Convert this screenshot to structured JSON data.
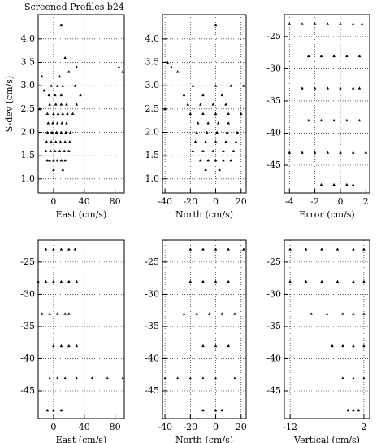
{
  "title": "Screened Profiles b24",
  "chart_data": [
    {
      "type": "scatter",
      "x_label": "East (cm/s)",
      "y_label": "S-dev (cm/s)",
      "grid": true,
      "color": "#000000",
      "xlim": [
        -20,
        92
      ],
      "ylim": [
        0.7,
        4.52
      ],
      "xticks": [
        0,
        40,
        80
      ],
      "yticks": [
        {
          "value": 1,
          "label": "1.0"
        },
        1.5,
        {
          "value": 2,
          "label": "2.0"
        },
        2.5,
        {
          "value": 3,
          "label": "3.0"
        },
        3.5,
        {
          "value": 4,
          "label": "4.0"
        }
      ],
      "x": [
        -8,
        -5,
        0,
        5,
        10,
        15,
        -10,
        -4,
        2,
        8,
        14,
        20,
        -9,
        -3,
        3,
        9,
        15,
        21,
        -8,
        -2,
        4,
        10,
        16,
        22,
        -7,
        -1,
        5,
        11,
        17,
        -8,
        0,
        6,
        12,
        18,
        25,
        -5,
        3,
        10,
        17,
        30,
        -6,
        2,
        10,
        35,
        -3,
        5,
        12,
        28,
        -15,
        8,
        20,
        15,
        30,
        85,
        90,
        10,
        -18,
        -12,
        0,
        12
      ],
      "y": [
        1.4,
        1.4,
        1.4,
        1.4,
        1.4,
        1.4,
        1.6,
        1.6,
        1.6,
        1.6,
        1.6,
        1.6,
        1.8,
        1.8,
        1.8,
        1.8,
        1.8,
        1.8,
        2.0,
        2.0,
        2.0,
        2.0,
        2.0,
        2.0,
        2.2,
        2.2,
        2.2,
        2.2,
        2.2,
        2.4,
        2.4,
        2.4,
        2.4,
        2.4,
        2.4,
        2.6,
        2.6,
        2.6,
        2.6,
        2.6,
        2.8,
        2.8,
        2.8,
        2.8,
        3.0,
        3.0,
        3.0,
        3.0,
        3.2,
        3.2,
        3.3,
        3.6,
        3.4,
        3.4,
        3.3,
        4.3,
        2.5,
        2.9,
        1.2,
        1.2
      ]
    },
    {
      "type": "scatter",
      "x_label": "North (cm/s)",
      "grid": true,
      "color": "#000000",
      "xlim": [
        -42,
        24
      ],
      "ylim": [
        0.7,
        4.52
      ],
      "xticks": [
        -40,
        -20,
        0,
        20
      ],
      "yticks": [
        {
          "value": 1,
          "label": "1.0"
        },
        1.5,
        {
          "value": 2,
          "label": "2.0"
        },
        2.5,
        {
          "value": 3,
          "label": "3.0"
        },
        3.5,
        {
          "value": 4,
          "label": "4.0"
        }
      ],
      "x": [
        -12,
        -6,
        0,
        6,
        12,
        -18,
        -10,
        -2,
        6,
        14,
        -16,
        -8,
        0,
        8,
        16,
        -15,
        -7,
        1,
        9,
        17,
        -14,
        -6,
        2,
        10,
        -20,
        -10,
        0,
        10,
        20,
        -22,
        -12,
        -2,
        8,
        -25,
        -10,
        5,
        -18,
        0,
        12,
        -30,
        -38,
        -35,
        0,
        22,
        -40,
        -8,
        3
      ],
      "y": [
        1.4,
        1.4,
        1.4,
        1.4,
        1.4,
        1.6,
        1.6,
        1.6,
        1.6,
        1.6,
        1.8,
        1.8,
        1.8,
        1.8,
        1.8,
        2.0,
        2.0,
        2.0,
        2.0,
        2.0,
        2.2,
        2.2,
        2.2,
        2.2,
        2.4,
        2.4,
        2.4,
        2.4,
        2.4,
        2.6,
        2.6,
        2.6,
        2.6,
        2.8,
        2.8,
        2.8,
        3.0,
        3.0,
        3.0,
        3.3,
        3.5,
        3.4,
        4.3,
        3.0,
        2.5,
        1.2,
        1.2
      ]
    },
    {
      "type": "scatter",
      "x_label": "Error (cm/s)",
      "grid": true,
      "color": "#000000",
      "xlim": [
        -4.4,
        2.3
      ],
      "ylim": [
        -49.3,
        -21.6
      ],
      "xticks": [
        -4,
        -2,
        0,
        2
      ],
      "yticks": [
        -25,
        -30,
        -35,
        -40,
        -45
      ],
      "x": [
        -4,
        -3,
        -2,
        -1,
        0,
        1,
        1.7,
        -2.5,
        -1.5,
        -0.5,
        0.5,
        1.5,
        -3,
        -2,
        -1,
        0,
        1,
        1.5,
        -2.5,
        -1.5,
        -0.5,
        0.5,
        1.5,
        -4,
        -3,
        -2,
        -1,
        0,
        1,
        2,
        -1.5,
        -0.5,
        0.5,
        1
      ],
      "y": [
        -23,
        -23,
        -23,
        -23,
        -23,
        -23,
        -23,
        -28,
        -28,
        -28,
        -28,
        -28,
        -33,
        -33,
        -33,
        -33,
        -33,
        -33,
        -38,
        -38,
        -38,
        -38,
        -38,
        -43,
        -43,
        -43,
        -43,
        -43,
        -43,
        -43,
        -48,
        -48,
        -48,
        -48
      ]
    },
    {
      "type": "scatter",
      "x_label": "East (cm/s)",
      "grid": true,
      "color": "#000000",
      "xlim": [
        -20,
        92
      ],
      "ylim": [
        -49.3,
        -21.6
      ],
      "xticks": [
        0,
        40,
        80
      ],
      "yticks": [
        -25,
        -30,
        -35,
        -40,
        -45
      ],
      "x": [
        -10,
        0,
        10,
        20,
        28,
        -20,
        -10,
        0,
        10,
        20,
        30,
        -15,
        -5,
        5,
        15,
        20,
        0,
        10,
        20,
        30,
        -5,
        5,
        15,
        30,
        50,
        70,
        90,
        -8,
        0,
        10
      ],
      "y": [
        -23,
        -23,
        -23,
        -23,
        -23,
        -28,
        -28,
        -28,
        -28,
        -28,
        -28,
        -33,
        -33,
        -33,
        -33,
        -33,
        -38,
        -38,
        -38,
        -38,
        -43,
        -43,
        -43,
        -43,
        -43,
        -43,
        -43,
        -48,
        -48,
        -48
      ]
    },
    {
      "type": "scatter",
      "x_label": "North (cm/s)",
      "grid": true,
      "color": "#000000",
      "xlim": [
        -42,
        24
      ],
      "ylim": [
        -49.3,
        -21.6
      ],
      "xticks": [
        -40,
        -20,
        0,
        20
      ],
      "yticks": [
        -25,
        -30,
        -35,
        -40,
        -45
      ],
      "x": [
        -20,
        -10,
        0,
        10,
        22,
        -20,
        -10,
        0,
        10,
        -25,
        -15,
        -5,
        5,
        15,
        -10,
        0,
        10,
        -40,
        -30,
        -20,
        -10,
        0,
        15,
        -10,
        0,
        5
      ],
      "y": [
        -23,
        -23,
        -23,
        -23,
        -23,
        -28,
        -28,
        -28,
        -28,
        -33,
        -33,
        -33,
        -33,
        -33,
        -38,
        -38,
        -38,
        -43,
        -43,
        -43,
        -43,
        -43,
        -43,
        -48,
        -48,
        -48
      ]
    },
    {
      "type": "scatter",
      "x_label": "Vertical (cm/s)",
      "grid": true,
      "color": "#000000",
      "xlim": [
        -13.1,
        3.1
      ],
      "ylim": [
        -49.3,
        -21.6
      ],
      "xticks": [
        -12,
        2
      ],
      "yticks": [
        -25,
        -30,
        -35,
        -40,
        -45
      ],
      "x": [
        -12,
        -9,
        -6,
        -3,
        0,
        2,
        -12,
        -9,
        -6,
        -3,
        0,
        2,
        -8,
        -5,
        -2,
        0,
        2,
        -4,
        -2,
        0,
        2,
        -2,
        0,
        2,
        -1,
        0,
        1
      ],
      "y": [
        -23,
        -23,
        -23,
        -23,
        -23,
        -23,
        -28,
        -28,
        -28,
        -28,
        -28,
        -28,
        -33,
        -33,
        -33,
        -33,
        -33,
        -38,
        -38,
        -38,
        -38,
        -43,
        -43,
        -43,
        -48,
        -48,
        -48
      ]
    }
  ]
}
